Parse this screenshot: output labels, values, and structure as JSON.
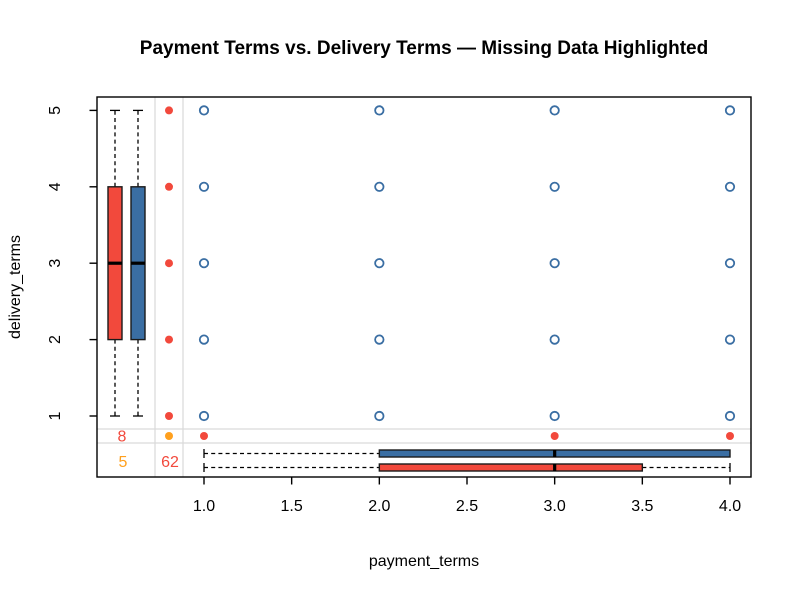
{
  "chart_data": {
    "type": "scatter",
    "variant": "marginplot-with-marginal-boxplots-missing-data",
    "title": "Payment Terms vs. Delivery Terms — Missing Data Highlighted",
    "xlabel": "payment_terms",
    "ylabel": "delivery_terms",
    "xlim": [
      1,
      4
    ],
    "ylim": [
      1,
      5
    ],
    "grid": false,
    "legend": null,
    "x_ticks": [
      1,
      1.5,
      2,
      2.5,
      3,
      3.5,
      4
    ],
    "x_tick_labels": [
      "1.0",
      "1.5",
      "2.0",
      "2.5",
      "3.0",
      "3.5",
      "4.0"
    ],
    "y_ticks": [
      1,
      2,
      3,
      4,
      5
    ],
    "y_tick_labels": [
      "1",
      "2",
      "3",
      "4",
      "5"
    ],
    "observed_points": [
      [
        1,
        1
      ],
      [
        1,
        2
      ],
      [
        1,
        3
      ],
      [
        1,
        4
      ],
      [
        1,
        5
      ],
      [
        2,
        1
      ],
      [
        2,
        2
      ],
      [
        2,
        3
      ],
      [
        2,
        4
      ],
      [
        2,
        5
      ],
      [
        3,
        1
      ],
      [
        3,
        2
      ],
      [
        3,
        3
      ],
      [
        3,
        4
      ],
      [
        3,
        5
      ],
      [
        4,
        1
      ],
      [
        4,
        2
      ],
      [
        4,
        3
      ],
      [
        4,
        4
      ],
      [
        4,
        5
      ]
    ],
    "missing_payment_terms": {
      "count": 62,
      "delivery_values": [
        5,
        4,
        3,
        2,
        1
      ]
    },
    "missing_delivery_terms": {
      "count": 8,
      "payment_values": [
        1,
        3,
        4
      ]
    },
    "missing_both": {
      "count": 5
    },
    "boxplots": {
      "delivery_when_payment_missing": {
        "min": 1,
        "q1": 2,
        "median": 3,
        "q3": 4,
        "max": 5,
        "color": "missing"
      },
      "delivery_when_payment_observed": {
        "min": 1,
        "q1": 2,
        "median": 3,
        "q3": 4,
        "max": 5,
        "color": "observed"
      },
      "payment_when_delivery_observed": {
        "min": 1,
        "q1": 2,
        "median": 3,
        "q3": 4,
        "max": 4,
        "color": "observed"
      },
      "payment_when_delivery_missing": {
        "min": 1,
        "q1": 2,
        "median": 3,
        "q3": 3.5,
        "max": 4,
        "color": "missing"
      }
    },
    "colors": {
      "observed": "#3A6EA3",
      "missing": "#F2493C",
      "missing_both": "#FFA01E",
      "separator_gray": "#D9D9D9",
      "text": "#000000",
      "background": "#FFFFFF"
    }
  }
}
